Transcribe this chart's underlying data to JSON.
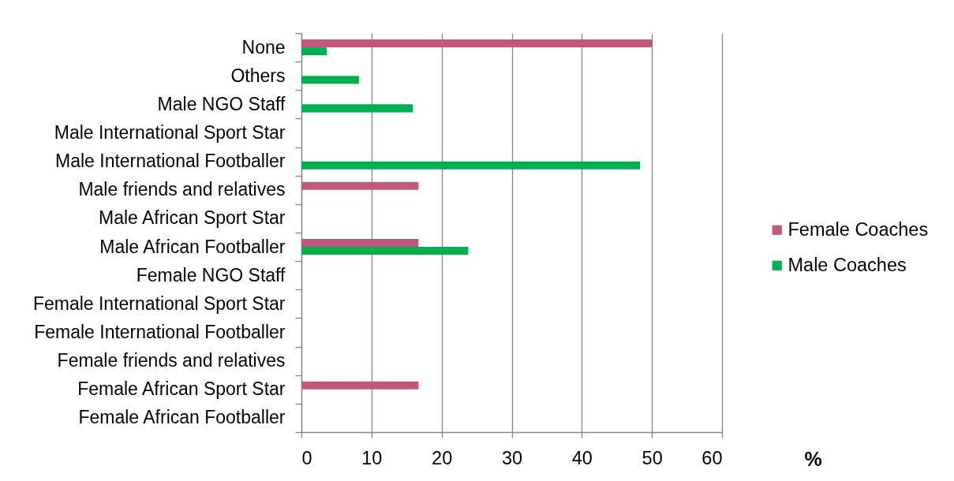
{
  "chart_data": {
    "type": "bar",
    "orientation": "horizontal",
    "xlabel": "%",
    "categories": [
      "None",
      "Others",
      "Male NGO Staff",
      "Male International Sport Star",
      "Male International Footballer",
      "Male friends and relatives",
      "Male African Sport Star",
      "Male African Footballer",
      "Female NGO Staff",
      "Female International Sport Star",
      "Female International Footballer",
      "Female friends and relatives",
      "Female African Sport Star",
      "Female African Footballer"
    ],
    "series": [
      {
        "name": "Female Coaches",
        "color": "#c0587e",
        "values": [
          50,
          0,
          0,
          0,
          0,
          16.7,
          0,
          16.7,
          0,
          0,
          0,
          0,
          16.7,
          0
        ]
      },
      {
        "name": "Male Coaches",
        "color": "#00b050",
        "values": [
          3.6,
          8.2,
          15.9,
          0,
          48.3,
          0,
          0,
          23.8,
          0,
          0,
          0,
          0,
          0,
          0
        ]
      }
    ],
    "xlim": [
      0,
      60
    ],
    "xticks": [
      0,
      10,
      20,
      30,
      40,
      50,
      60
    ],
    "grid": "x",
    "legend": "right"
  }
}
